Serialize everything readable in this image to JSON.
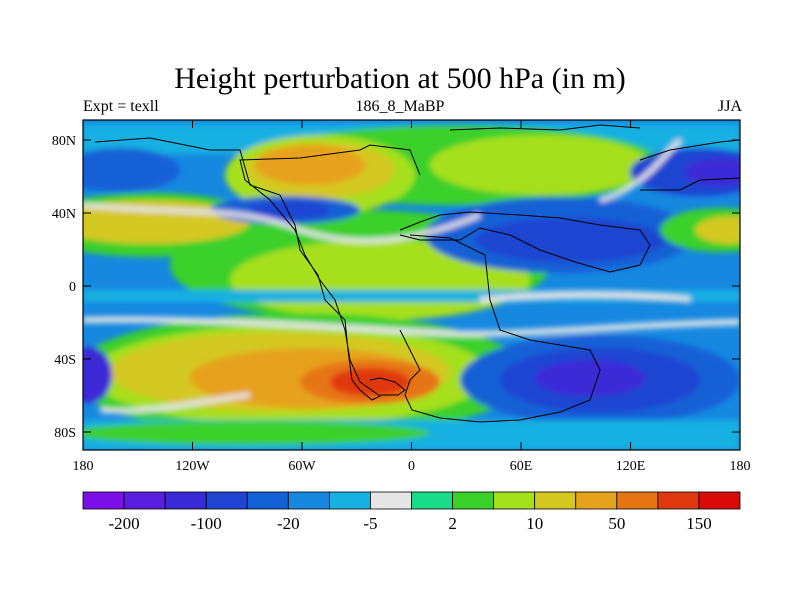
{
  "title": "Height perturbation at 500 hPa (in m)",
  "left_label": "Expt = texll",
  "center_label": "186_8_MaBP",
  "right_label": "JJA",
  "y_tick_labels": [
    "80N",
    "40N",
    "0",
    "40S",
    "80S"
  ],
  "x_tick_labels": [
    "180",
    "120W",
    "60W",
    "0",
    "60E",
    "120E",
    "180"
  ],
  "colorbar": {
    "colors": [
      "#7b0fe8",
      "#5a1ee0",
      "#3a2ad6",
      "#1f44d2",
      "#1260d6",
      "#1688e0",
      "#16b0e2",
      "#e6e6e6",
      "#18dc8a",
      "#3ad02a",
      "#a6e01a",
      "#d4c820",
      "#e6a21c",
      "#e67414",
      "#e0380e",
      "#d80a0a"
    ],
    "labels": [
      "-200",
      "-100",
      "-20",
      "-5",
      "2",
      "10",
      "50",
      "150"
    ]
  }
}
